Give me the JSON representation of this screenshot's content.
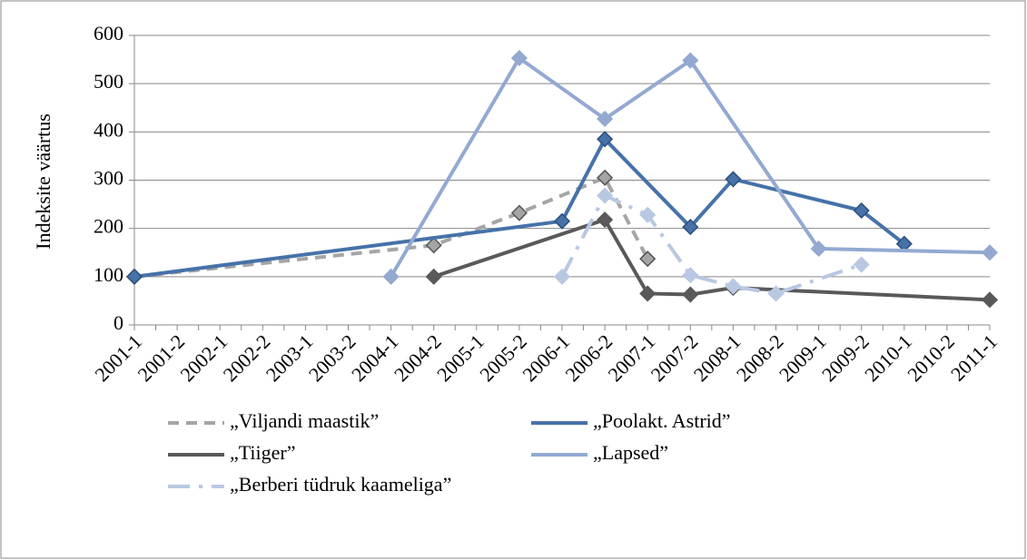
{
  "chart_data": {
    "type": "line",
    "y_label": "Indeksite väärtus",
    "categories": [
      "2001-1",
      "2001-2",
      "2002-1",
      "2002-2",
      "2003-1",
      "2003-2",
      "2004-1",
      "2004-2",
      "2005-1",
      "2005-2",
      "2006-1",
      "2006-2",
      "2007-1",
      "2007-2",
      "2008-1",
      "2008-2",
      "2009-1",
      "2009-2",
      "2010-1",
      "2010-2",
      "2011-1"
    ],
    "ylim": [
      0,
      600
    ],
    "yticks": [
      0,
      100,
      200,
      300,
      400,
      500,
      600
    ],
    "grid": true,
    "series": [
      {
        "name": "„Viljandi maastik”",
        "color": "#a5a5a5",
        "line_style": "dash",
        "x": [
          "2001-1",
          "2004-2",
          "2005-2",
          "2006-2",
          "2007-1"
        ],
        "values": [
          100,
          165,
          232,
          305,
          137
        ]
      },
      {
        "name": "„Poolakt. Astrid”",
        "color": "#4672a8",
        "line_style": "solid",
        "x": [
          "2001-1",
          "2006-1",
          "2006-2",
          "2007-2",
          "2008-1",
          "2009-2",
          "2010-1"
        ],
        "values": [
          100,
          215,
          385,
          203,
          302,
          237,
          168
        ]
      },
      {
        "name": "„Tiiger”",
        "color": "#595959",
        "line_style": "solid",
        "x": [
          "2004-2",
          "2006-2",
          "2007-1",
          "2007-2",
          "2008-1",
          "2011-1"
        ],
        "values": [
          100,
          218,
          65,
          63,
          77,
          52
        ]
      },
      {
        "name": "„Lapsed”",
        "color": "#93a9d1",
        "line_style": "solid",
        "x": [
          "2004-1",
          "2005-2",
          "2006-2",
          "2007-2",
          "2009-1",
          "2011-1"
        ],
        "values": [
          100,
          553,
          427,
          548,
          158,
          150
        ]
      },
      {
        "name": "„Berberi tüdruk kaameliga”",
        "color": "#b9c8e2",
        "line_style": "longdash",
        "x": [
          "2006-1",
          "2006-2",
          "2007-1",
          "2007-2",
          "2008-1",
          "2008-2",
          "2009-2"
        ],
        "values": [
          100,
          268,
          228,
          103,
          80,
          65,
          125
        ]
      }
    ]
  }
}
